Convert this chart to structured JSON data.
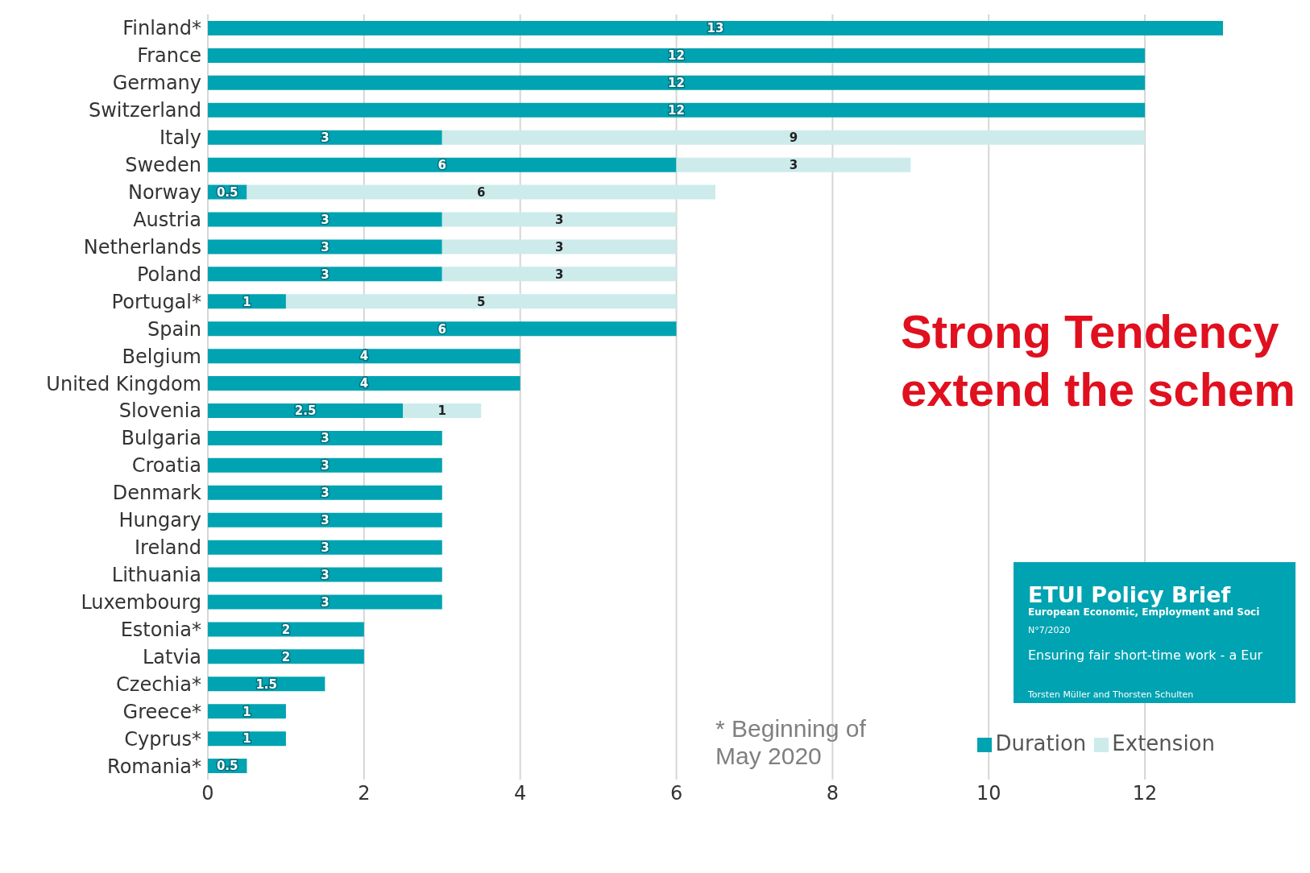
{
  "chart_data": {
    "type": "bar",
    "orientation": "horizontal",
    "stacked": true,
    "categories": [
      "Finland*",
      "France",
      "Germany",
      "Switzerland",
      "Italy",
      "Sweden",
      "Norway",
      "Austria",
      "Netherlands",
      "Poland",
      "Portugal*",
      "Spain",
      "Belgium",
      "United Kingdom",
      "Slovenia",
      "Bulgaria",
      "Croatia",
      "Denmark",
      "Hungary",
      "Ireland",
      "Lithuania",
      "Luxembourg",
      "Estonia*",
      "Latvia",
      "Czechia*",
      "Greece*",
      "Cyprus*",
      "Romania*"
    ],
    "series": [
      {
        "name": "Duration",
        "color": "#00a3b1",
        "values": [
          13,
          12,
          12,
          12,
          3,
          6,
          0.5,
          3,
          3,
          3,
          1,
          6,
          4,
          4,
          2.5,
          3,
          3,
          3,
          3,
          3,
          3,
          3,
          2,
          2,
          1.5,
          1,
          1,
          0.5
        ]
      },
      {
        "name": "Extension",
        "color": "#cdebeb",
        "values": [
          null,
          null,
          null,
          null,
          9,
          3,
          6,
          3,
          3,
          3,
          5,
          null,
          null,
          null,
          1,
          null,
          null,
          null,
          null,
          null,
          null,
          null,
          null,
          null,
          null,
          null,
          null,
          null
        ]
      }
    ],
    "xlim": [
      0,
      13
    ],
    "xticks": [
      0,
      2,
      4,
      6,
      8,
      10,
      12
    ],
    "grid": "x",
    "legend": "bottom right",
    "data_labels": true,
    "annotations": [
      "Strong Tendency",
      "extend the schem",
      "* Beginning of May 2020",
      "ETUI Policy Brief",
      "European Economic, Employment and Soci",
      "N°7/2020",
      "Ensuring fair short-time work - a Eur",
      "Torsten Müller and Thorsten Schulten"
    ]
  }
}
